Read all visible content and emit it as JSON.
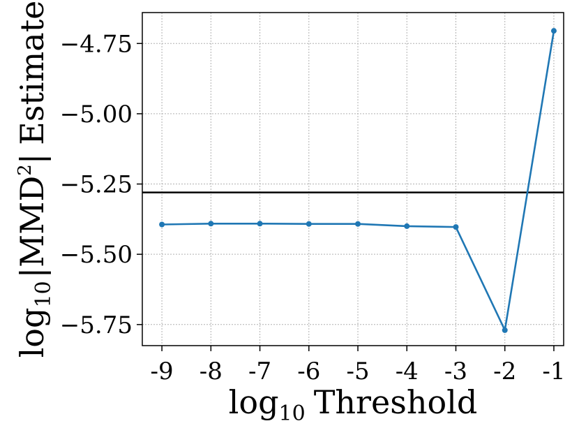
{
  "chart_data": {
    "type": "line",
    "xlabel": {
      "prefix": "log",
      "sub": "10",
      "main": "Threshold"
    },
    "ylabel": {
      "prefix": "log",
      "sub": "10",
      "bar_left": "|",
      "main": "MMD",
      "sup": "2",
      "bar_right": "|",
      "suffix": "Estimate"
    },
    "x": [
      -9,
      -8,
      -7,
      -6,
      -5,
      -4,
      -3,
      -2,
      -1
    ],
    "series": [
      {
        "values": [
          -5.394,
          -5.391,
          -5.391,
          -5.392,
          -5.392,
          -5.4,
          -5.403,
          -5.77,
          -4.705
        ]
      }
    ],
    "reference_line": {
      "y": -5.28,
      "color": "#000000"
    },
    "xlim": [
      -9.4,
      -0.8
    ],
    "ylim": [
      -5.825,
      -4.64
    ],
    "x_ticks": [
      -9,
      -8,
      -7,
      -6,
      -5,
      -4,
      -3,
      -2,
      -1
    ],
    "x_tick_labels": [
      "-9",
      "-8",
      "-7",
      "-6",
      "-5",
      "-4",
      "-3",
      "-2",
      "-1"
    ],
    "y_ticks": [
      -5.75,
      -5.5,
      -5.25,
      -5.0,
      -4.75
    ],
    "y_tick_labels": [
      "−5.75",
      "−5.50",
      "−5.25",
      "−5.00",
      "−4.75"
    ],
    "grid": true,
    "series_color": "#1f77b4"
  }
}
